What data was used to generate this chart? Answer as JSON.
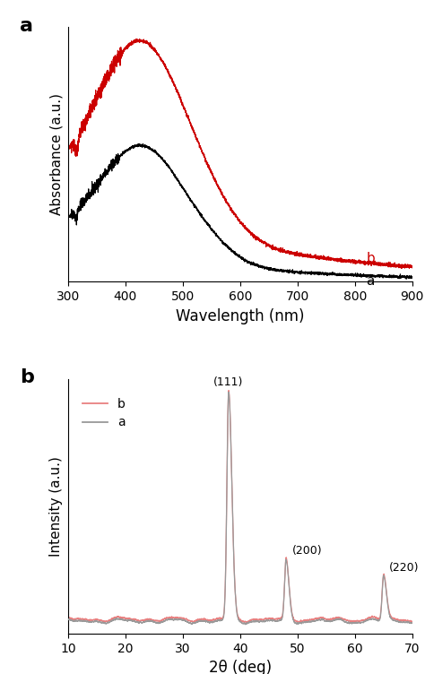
{
  "panel_a_label": "a",
  "panel_b_label": "b",
  "uv_xlabel": "Wavelength (nm)",
  "uv_ylabel": "Absorbance (a.u.)",
  "uv_xlim": [
    300,
    900
  ],
  "uv_xticks": [
    300,
    400,
    500,
    600,
    700,
    800,
    900
  ],
  "uv_label_a": "a",
  "uv_label_b": "b",
  "uv_color_a": "#000000",
  "uv_color_b": "#cc0000",
  "xrd_xlabel": "2θ (deg)",
  "xrd_ylabel": "Intensity (a.u.)",
  "xrd_xlim": [
    10,
    70
  ],
  "xrd_xticks": [
    10,
    20,
    30,
    40,
    50,
    60,
    70
  ],
  "xrd_label_a": "a",
  "xrd_label_b": "b",
  "xrd_color_a": "#999999",
  "xrd_color_b": "#e88080",
  "background_color": "#ffffff"
}
